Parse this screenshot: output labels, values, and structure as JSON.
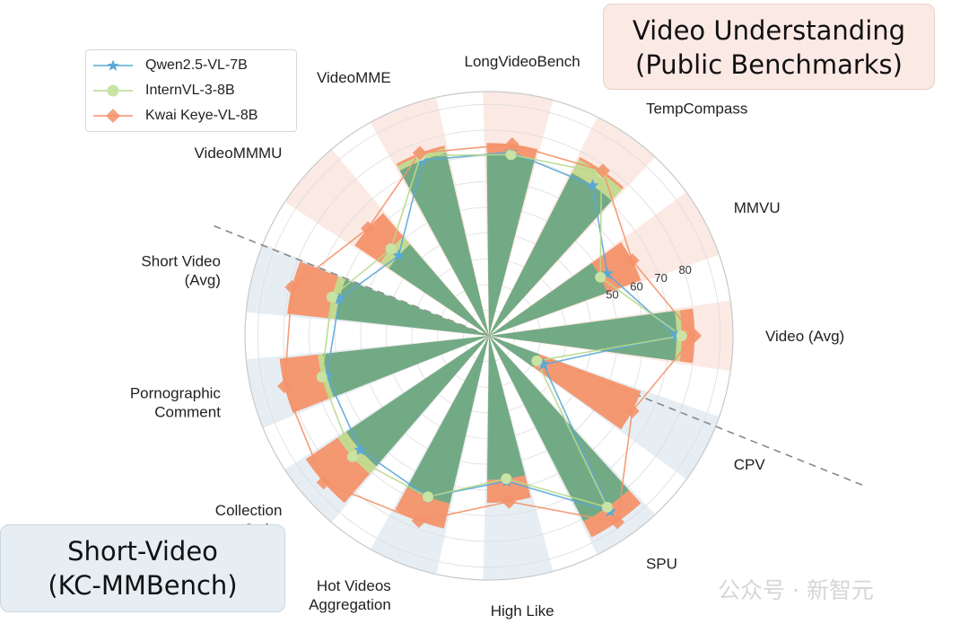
{
  "chart_data": {
    "type": "radar-bar",
    "categories": [
      "Video (Avg)",
      "MMVU",
      "TempCompass",
      "LongVideoBench",
      "VideoMME",
      "VideoMMMU",
      "Short Video\n(Avg)",
      "Pornographic\nComment",
      "Collection\nOrder",
      "Hot Videos\nAggregation",
      "High Like",
      "SPU",
      "CPV"
    ],
    "group_of_category": [
      "public",
      "public",
      "public",
      "public",
      "public",
      "public",
      "short",
      "short",
      "short",
      "short",
      "short",
      "short",
      "short"
    ],
    "series": [
      {
        "name": "Qwen2.5-VL-7B",
        "color": "#5ba8d6",
        "marker": "star",
        "values": [
          73,
          52,
          71,
          72,
          73,
          47,
          60,
          65,
          67,
          67,
          57,
          83,
          24
        ]
      },
      {
        "name": "InternVL-3-8B",
        "color": "#b7d98d",
        "marker": "circle",
        "values": [
          75,
          49,
          77,
          71,
          75,
          51,
          63,
          67,
          71,
          67,
          56,
          81,
          21
        ]
      },
      {
        "name": "Kwai Keye-VL-8B",
        "color": "#f4926a",
        "marker": "diamond",
        "values": [
          80,
          63,
          78,
          75,
          76,
          63,
          79,
          82,
          86,
          77,
          65,
          88,
          63
        ]
      }
    ],
    "rlim": [
      0,
      95
    ],
    "rticks": [
      50,
      60,
      70,
      80
    ],
    "grid": true,
    "legend_position": "top-left",
    "divider": "dashed"
  },
  "titles": {
    "top_right": [
      "Video Understanding",
      "(Public Benchmarks)"
    ],
    "bottom_left": [
      "Short-Video",
      "(KC-MMBench)"
    ]
  },
  "watermark": "公众号 · 新智元",
  "colors": {
    "public_band": "#fbe9e4",
    "short_band": "#e6eef4",
    "green_bar": "#6fa886",
    "title_top_bg": "#fbe9e4",
    "title_bottom_bg": "#e6eef4"
  }
}
